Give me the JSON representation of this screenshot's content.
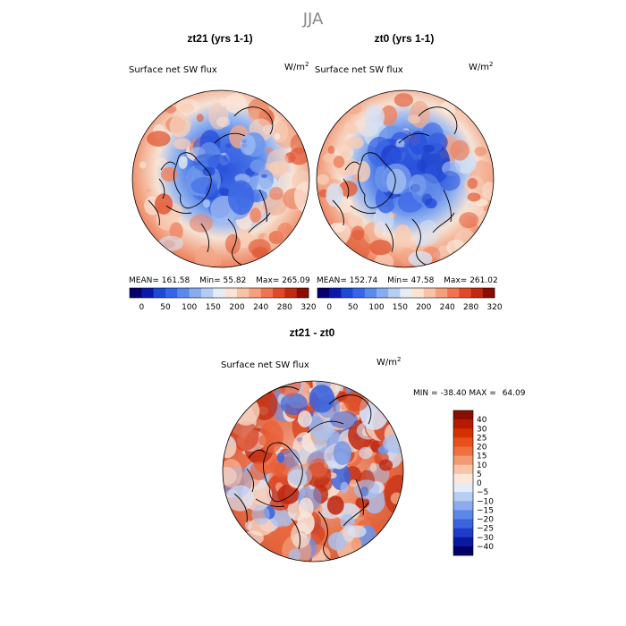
{
  "chart_data": [
    {
      "type": "heatmap",
      "projection": "polar stereographic",
      "title": "zt21 (yrs 1-1)",
      "variable": "Surface net SW flux",
      "units_base": "W/m",
      "units_exp": "2",
      "stats": {
        "mean_label": "MEAN=",
        "mean": "161.58",
        "min_label": "Min=",
        "min": "55.82",
        "max_label": "Max=",
        "max": "265.09"
      },
      "colorbar_ticks": [
        "0",
        "50",
        "100",
        "150",
        "200",
        "240",
        "280",
        "320"
      ]
    },
    {
      "type": "heatmap",
      "projection": "polar stereographic",
      "title": "zt0 (yrs 1-1)",
      "variable": "Surface net SW flux",
      "units_base": "W/m",
      "units_exp": "2",
      "stats": {
        "mean_label": "MEAN=",
        "mean": "152.74",
        "min_label": "Min=",
        "min": "47.58",
        "max_label": "Max=",
        "max": "261.02"
      },
      "colorbar_ticks": [
        "0",
        "50",
        "100",
        "150",
        "200",
        "240",
        "280",
        "320"
      ]
    },
    {
      "type": "heatmap",
      "projection": "polar stereographic",
      "title": "zt21 - zt0",
      "variable": "Surface net SW flux",
      "units_base": "W/m",
      "units_exp": "2",
      "stats": {
        "min_label": "MIN =",
        "min": "-38.40",
        "max_label": "MAX =",
        "max": "64.09"
      },
      "colorbar_ticks": [
        "40",
        "30",
        "25",
        "20",
        "15",
        "10",
        "5",
        "0",
        "-5",
        "-10",
        "-15",
        "-20",
        "-25",
        "-30",
        "-40"
      ]
    }
  ],
  "season": "JJA",
  "colors": {
    "abs_scale": [
      "#08006b",
      "#0a1aa8",
      "#1b4ad4",
      "#3565e8",
      "#5a8ae8",
      "#87acef",
      "#b5cdf3",
      "#e6ecf5",
      "#fbe3d3",
      "#f8c4a8",
      "#f4a07c",
      "#ee7550",
      "#e04a28",
      "#c02a10",
      "#8c0d00"
    ],
    "diff_scale": [
      "#8c0d00",
      "#b51a00",
      "#d53000",
      "#e8501a",
      "#f07040",
      "#f49a72",
      "#f9c4a8",
      "#fbe8d8",
      "#e3ecf7",
      "#b8cdf2",
      "#8cacef",
      "#5d88e6",
      "#3a63dc",
      "#1e3cc8",
      "#0a1aa0",
      "#04006a"
    ]
  }
}
